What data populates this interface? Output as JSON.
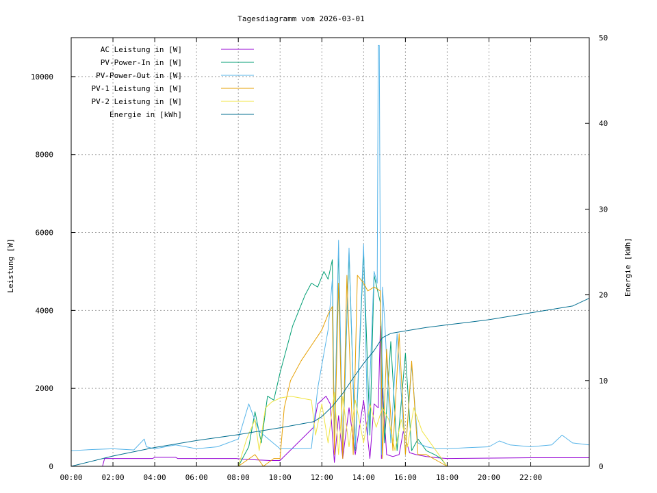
{
  "chart_data": {
    "type": "line",
    "title": "Tagesdiagramm vom 2026-03-01",
    "xlabel": "",
    "ylabel": "Leistung [W]",
    "y2label": "Energie in [kWh]",
    "y2axis_label": "Energie [kWh]",
    "xlim_hours": [
      0,
      24.8
    ],
    "ylim": [
      0,
      11000
    ],
    "y2lim": [
      0,
      50
    ],
    "grid": true,
    "legend_position": "top-left",
    "x_ticks": [
      "00:00",
      "02:00",
      "04:00",
      "06:00",
      "08:00",
      "10:00",
      "12:00",
      "14:00",
      "16:00",
      "18:00",
      "20:00",
      "22:00"
    ],
    "x_tick_hours": [
      0,
      2,
      4,
      6,
      8,
      10,
      12,
      14,
      16,
      18,
      20,
      22
    ],
    "y_ticks": [
      0,
      2000,
      4000,
      6000,
      8000,
      10000
    ],
    "y2_ticks": [
      0,
      10,
      20,
      30,
      40,
      50
    ],
    "series": [
      {
        "name": "AC Leistung in [W]",
        "color": "#9400d3",
        "axis": "left",
        "x_hours": [
          0,
          1.5,
          1.6,
          3.9,
          4.0,
          5.0,
          5.1,
          7.9,
          8.3,
          9.5,
          10.0,
          11.6,
          11.8,
          12.0,
          12.2,
          12.4,
          12.6,
          12.8,
          13.0,
          13.3,
          13.6,
          14.0,
          14.3,
          14.5,
          14.7,
          14.8,
          14.85,
          14.9,
          15.0,
          15.1,
          15.4,
          15.7,
          15.9,
          16.2,
          16.5,
          17.0,
          17.5,
          18.0,
          22.0,
          24.8
        ],
        "values": [
          0,
          0,
          200,
          200,
          230,
          230,
          200,
          200,
          180,
          150,
          150,
          1000,
          1600,
          1700,
          1800,
          1600,
          100,
          1300,
          200,
          1500,
          300,
          1700,
          200,
          1600,
          1500,
          3600,
          200,
          2000,
          1200,
          300,
          250,
          300,
          900,
          350,
          300,
          250,
          220,
          200,
          220,
          220
        ]
      },
      {
        "name": "PV-Power-In in [W]",
        "color": "#009e73",
        "axis": "left",
        "x_hours": [
          8.0,
          8.5,
          8.8,
          9.1,
          9.4,
          9.7,
          10.0,
          10.3,
          10.6,
          10.9,
          11.2,
          11.5,
          11.8,
          12.1,
          12.3,
          12.5,
          12.6,
          12.8,
          13.0,
          13.3,
          13.6,
          14.0,
          14.3,
          14.5,
          14.8,
          15.0,
          15.3,
          15.6,
          16.0,
          16.3,
          16.6,
          17.0,
          17.4,
          17.7,
          18.0
        ],
        "values": [
          0,
          500,
          1400,
          600,
          1800,
          1700,
          2400,
          3000,
          3600,
          4000,
          4400,
          4700,
          4600,
          5000,
          4800,
          5300,
          500,
          5600,
          300,
          5500,
          400,
          5500,
          800,
          4900,
          4200,
          600,
          3200,
          400,
          2900,
          400,
          700,
          400,
          300,
          200,
          0
        ]
      },
      {
        "name": "PV-Power-Out in [W]",
        "color": "#56b4e9",
        "axis": "left",
        "x_hours": [
          0,
          1.0,
          2.0,
          3.0,
          3.5,
          3.6,
          4.0,
          5.0,
          5.5,
          6.0,
          7.0,
          8.0,
          8.5,
          9.0,
          10.0,
          11.0,
          11.5,
          11.8,
          12.0,
          12.3,
          12.5,
          12.6,
          12.8,
          13.0,
          13.3,
          13.6,
          14.0,
          14.2,
          14.5,
          14.65,
          14.7,
          14.75,
          14.8,
          14.85,
          14.9,
          15.0,
          15.3,
          15.6,
          16.0,
          16.3,
          16.6,
          17.0,
          17.5,
          18.0,
          19.0,
          20.0,
          20.5,
          21.0,
          22.0,
          23.0,
          23.5,
          24.0,
          24.8
        ],
        "values": [
          400,
          430,
          450,
          420,
          700,
          500,
          450,
          550,
          500,
          450,
          500,
          700,
          1600,
          900,
          450,
          450,
          460,
          2000,
          2600,
          3500,
          4800,
          600,
          5800,
          400,
          5600,
          500,
          5700,
          800,
          5000,
          4700,
          10800,
          10800,
          4600,
          300,
          4600,
          3800,
          600,
          3400,
          300,
          2600,
          600,
          500,
          450,
          450,
          480,
          500,
          650,
          550,
          500,
          550,
          800,
          600,
          550
        ]
      },
      {
        "name": "PV-1 Leistung in [W]",
        "color": "#e69f00",
        "axis": "left",
        "x_hours": [
          8.0,
          8.8,
          9.2,
          9.7,
          10.0,
          10.2,
          10.5,
          11.0,
          11.5,
          12.0,
          12.3,
          12.5,
          12.6,
          12.8,
          13.0,
          13.2,
          13.5,
          13.7,
          14.0,
          14.2,
          14.5,
          14.8,
          14.9,
          15.1,
          15.4,
          15.7,
          16.0,
          16.3,
          16.6,
          17.0,
          17.5,
          18.0
        ],
        "values": [
          0,
          300,
          0,
          200,
          200,
          1500,
          2200,
          2700,
          3100,
          3500,
          3900,
          4100,
          300,
          4700,
          200,
          4900,
          300,
          4900,
          4700,
          4500,
          4600,
          4500,
          200,
          3000,
          400,
          3400,
          300,
          2700,
          300,
          300,
          150,
          0
        ]
      },
      {
        "name": "PV-2 Leistung in [W]",
        "color": "#f0e442",
        "axis": "left",
        "x_hours": [
          8.0,
          8.4,
          8.8,
          9.0,
          9.3,
          9.6,
          10.0,
          10.5,
          11.0,
          11.5,
          11.7,
          12.0,
          12.3,
          12.6,
          12.8,
          13.0,
          13.3,
          13.6,
          14.0,
          14.3,
          14.6,
          14.9,
          15.2,
          15.5,
          15.8,
          16.1,
          16.4,
          16.8,
          17.2,
          17.6,
          18.0
        ],
        "values": [
          0,
          700,
          1200,
          400,
          1500,
          1650,
          1750,
          1800,
          1750,
          1700,
          800,
          1600,
          600,
          1900,
          300,
          1800,
          500,
          1700,
          600,
          1600,
          1000,
          1500,
          1200,
          400,
          1200,
          500,
          1500,
          900,
          600,
          300,
          0
        ]
      },
      {
        "name": "Energie in [kWh]",
        "color": "#006d8f",
        "axis": "right",
        "x_hours": [
          0,
          2,
          4,
          6,
          8,
          10,
          11.6,
          12.0,
          12.5,
          13.0,
          13.5,
          14.0,
          14.5,
          14.9,
          15.3,
          16.0,
          17.0,
          18.0,
          19.0,
          20.0,
          21.0,
          22.0,
          23.0,
          24.0,
          24.8
        ],
        "values": [
          0,
          1.2,
          2.2,
          3.0,
          3.7,
          4.5,
          5.2,
          5.8,
          7.0,
          8.5,
          10.3,
          12.0,
          13.5,
          15.0,
          15.5,
          15.8,
          16.2,
          16.5,
          16.8,
          17.1,
          17.5,
          17.9,
          18.3,
          18.7,
          19.6
        ]
      }
    ]
  }
}
